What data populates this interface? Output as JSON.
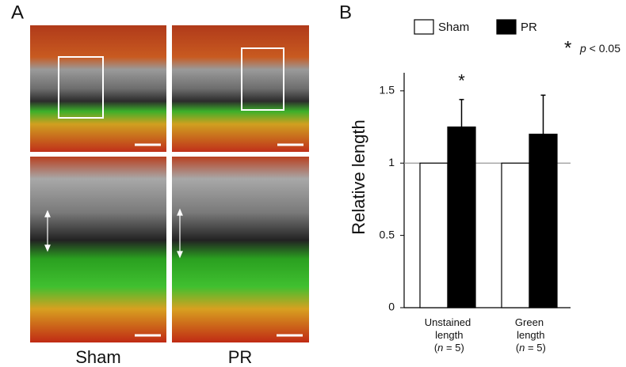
{
  "panel_a": {
    "label": "A",
    "columns": [
      "Sham",
      "PR"
    ]
  },
  "panel_b": {
    "label": "B"
  },
  "chart_data": {
    "type": "bar",
    "categories": [
      "Unstained length (n = 5)",
      "Green length (n = 5)"
    ],
    "series": [
      {
        "name": "Sham",
        "color": "#ffffff",
        "values": [
          1,
          1
        ]
      },
      {
        "name": "PR",
        "color": "#000000",
        "values": [
          1.25,
          1.2
        ],
        "errors": [
          0.19,
          0.27
        ]
      }
    ],
    "y_label": "Relative length",
    "ylim": [
      0,
      1.625
    ],
    "yticks": [
      0,
      0.5,
      1,
      1.5
    ],
    "reference_line": 1,
    "significance_marks": [
      {
        "label": "*",
        "category": 0,
        "series": 1
      }
    ],
    "annotation": {
      "symbol": "*",
      "text": "p < 0.05"
    },
    "legend": "top"
  }
}
